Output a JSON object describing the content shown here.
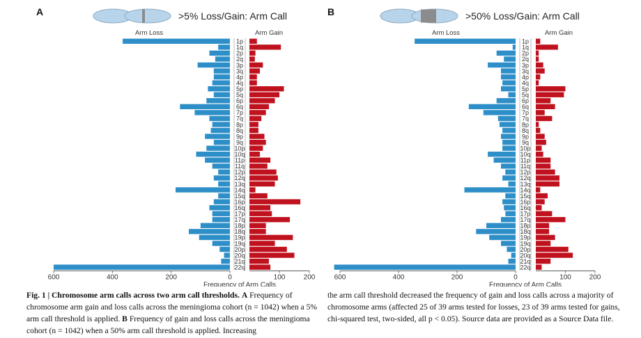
{
  "colors": {
    "loss": "#2e8fc8",
    "gain": "#c0121e",
    "chrom_body": "#b8d4ea",
    "chrom_band": "#8c8c8c"
  },
  "chart_data": [
    {
      "type": "bar",
      "panel": "A",
      "header": ">5% Loss/Gain: Arm Call",
      "left_label": "Arm Loss",
      "right_label": "Arm Gain",
      "xlabel": "Frequency of Arm Calls",
      "loss_ticks": [
        600,
        400,
        200,
        0
      ],
      "gain_ticks": [
        100,
        200
      ],
      "xlim_loss": [
        0,
        600
      ],
      "xlim_gain": [
        0,
        200
      ],
      "categories": [
        "1p",
        "1q",
        "2p",
        "2q",
        "3p",
        "3q",
        "4p",
        "4q",
        "5p",
        "5q",
        "6p",
        "6q",
        "7p",
        "7q",
        "8p",
        "8q",
        "9p",
        "9q",
        "10p",
        "10q",
        "11p",
        "11q",
        "12p",
        "12q",
        "13q",
        "14q",
        "15q",
        "16p",
        "16q",
        "17p",
        "17q",
        "18p",
        "18q",
        "19p",
        "19q",
        "20p",
        "20q",
        "21q",
        "22q"
      ],
      "series": [
        {
          "name": "Arm Loss",
          "values": [
            365,
            40,
            70,
            50,
            110,
            55,
            55,
            60,
            75,
            55,
            80,
            170,
            120,
            70,
            60,
            65,
            85,
            55,
            80,
            115,
            85,
            60,
            40,
            55,
            40,
            185,
            40,
            55,
            70,
            60,
            60,
            100,
            140,
            105,
            60,
            35,
            20,
            30,
            600
          ]
        },
        {
          "name": "Arm Gain",
          "values": [
            25,
            105,
            20,
            18,
            45,
            35,
            25,
            25,
            115,
            100,
            85,
            65,
            55,
            40,
            30,
            30,
            50,
            55,
            45,
            35,
            70,
            60,
            90,
            95,
            85,
            20,
            60,
            170,
            70,
            75,
            135,
            55,
            55,
            145,
            85,
            125,
            150,
            65,
            70
          ]
        }
      ]
    },
    {
      "type": "bar",
      "panel": "B",
      "header": ">50% Loss/Gain: Arm Call",
      "left_label": "Arm Loss",
      "right_label": "Arm Gain",
      "xlabel": "Frequency of Arm Calls",
      "loss_ticks": [
        600,
        400,
        200,
        0
      ],
      "gain_ticks": [
        100,
        200
      ],
      "xlim_loss": [
        0,
        600
      ],
      "xlim_gain": [
        0,
        200
      ],
      "categories": [
        "1p",
        "1q",
        "2p",
        "2q",
        "3p",
        "3q",
        "4p",
        "4q",
        "5p",
        "5q",
        "6p",
        "6q",
        "7p",
        "7q",
        "8p",
        "8q",
        "9p",
        "9q",
        "10p",
        "10q",
        "11p",
        "11q",
        "12p",
        "12q",
        "13q",
        "14q",
        "15q",
        "16p",
        "16q",
        "17p",
        "17q",
        "18p",
        "18q",
        "19p",
        "19q",
        "20p",
        "20q",
        "21q",
        "22q"
      ],
      "series": [
        {
          "name": "Arm Loss",
          "values": [
            345,
            10,
            65,
            40,
            95,
            50,
            50,
            45,
            50,
            25,
            65,
            160,
            110,
            60,
            55,
            45,
            50,
            45,
            45,
            95,
            75,
            50,
            35,
            45,
            25,
            175,
            35,
            45,
            40,
            35,
            50,
            100,
            135,
            90,
            50,
            30,
            15,
            25,
            620
          ]
        },
        {
          "name": "Arm Gain",
          "values": [
            15,
            75,
            10,
            10,
            25,
            30,
            15,
            10,
            100,
            95,
            50,
            65,
            30,
            55,
            10,
            15,
            30,
            35,
            20,
            25,
            50,
            50,
            65,
            80,
            80,
            15,
            40,
            30,
            20,
            55,
            100,
            45,
            45,
            65,
            50,
            110,
            125,
            50,
            20
          ]
        }
      ]
    }
  ],
  "caption": {
    "fig_label": "Fig. 1 | Chromosome arm calls across two arm call thresholds.",
    "part_a_label": "A",
    "part_a_text": "Frequency of chromosome arm gain and loss calls across the meningioma cohort (n = 1042) when a 5% arm call threshold is applied.",
    "part_b_label": "B",
    "part_b_text": "Frequency of gain and loss calls across the meningioma cohort (n = 1042) when a 50% arm call threshold is applied. Increasing",
    "continuation": "the arm call threshold decreased the frequency of gain and loss calls across a majority of chromosome arms (affected 25 of 39 arms tested for losses, 23 of 39 arms tested for gains, chi-squared test, two-sided, all p < 0.05). Source data are provided as a Source Data file."
  }
}
